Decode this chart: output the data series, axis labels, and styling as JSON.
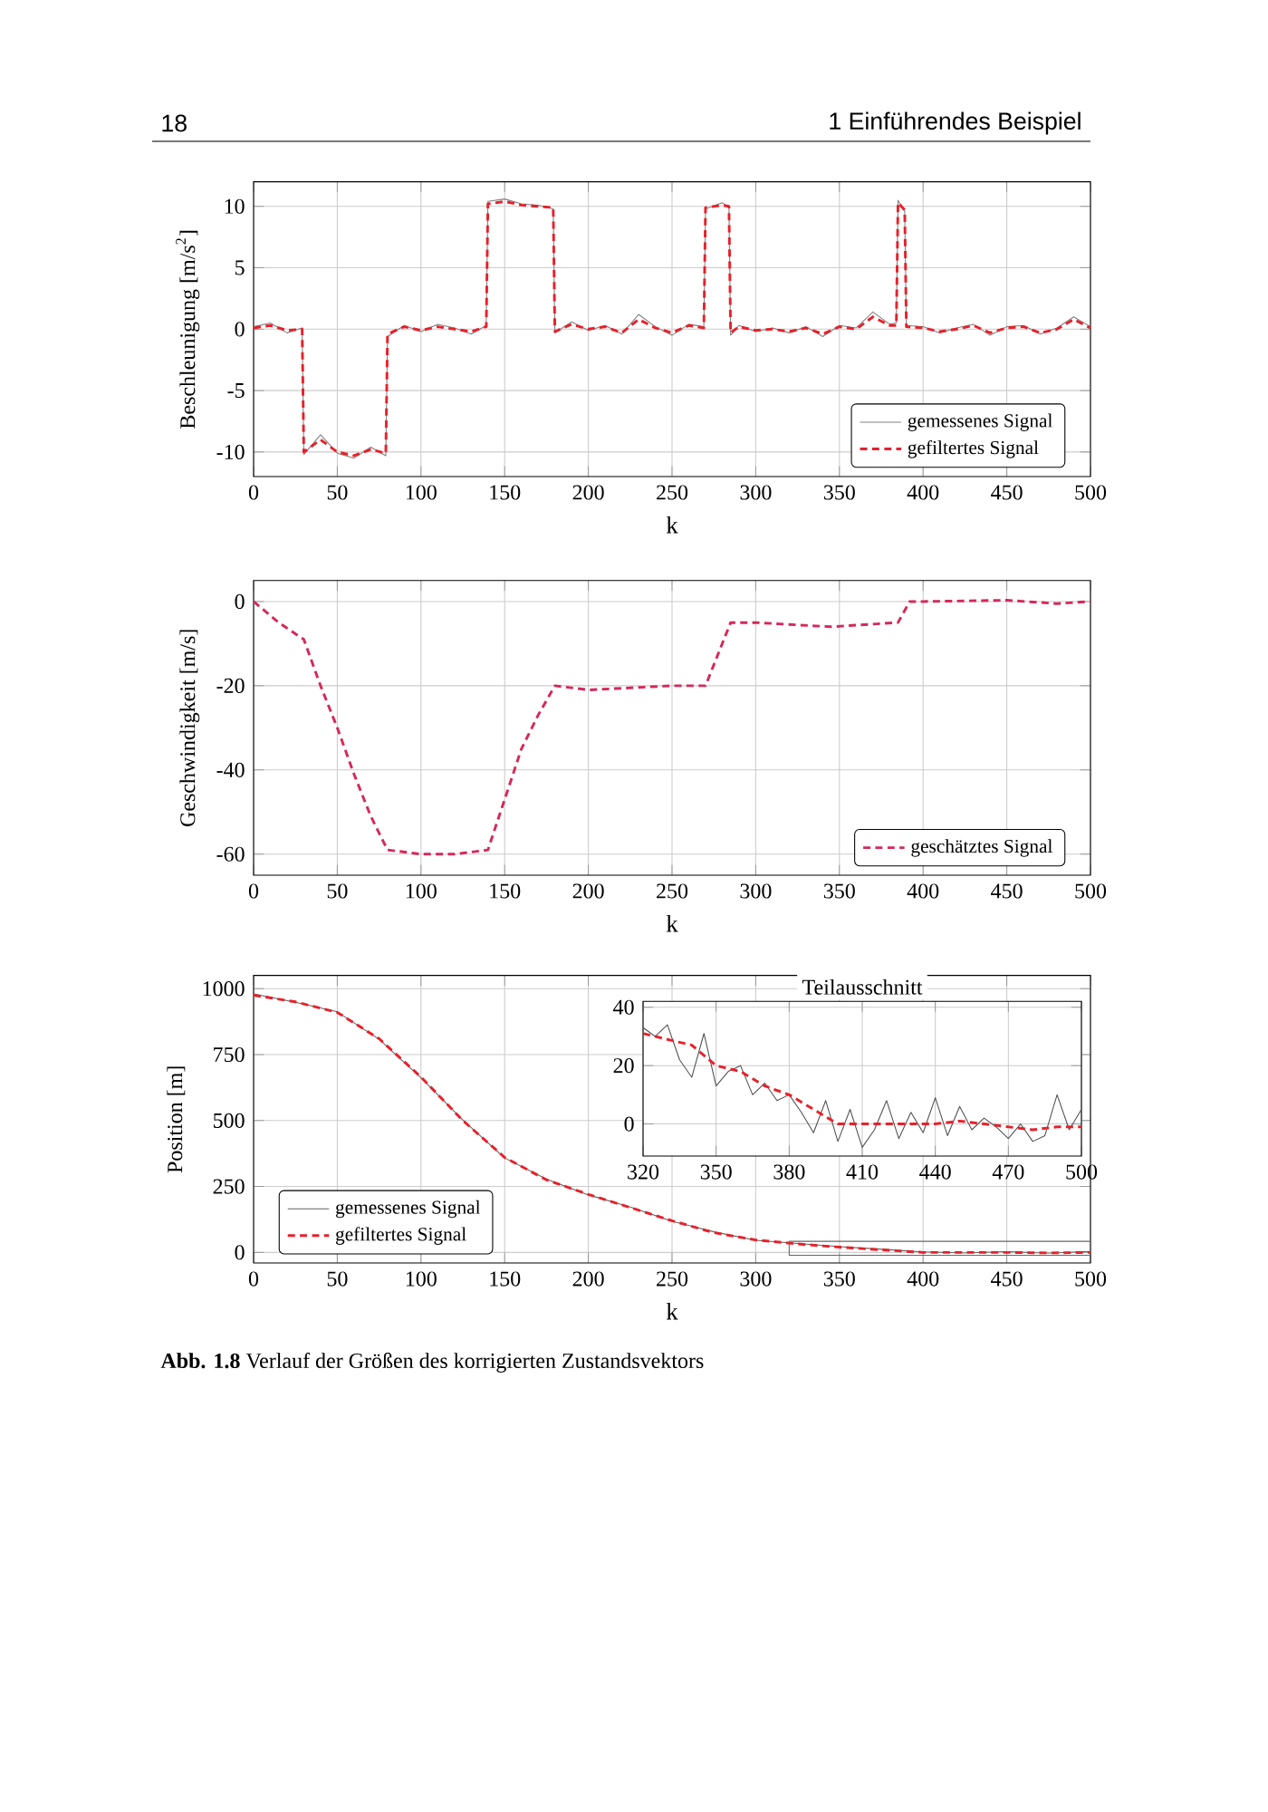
{
  "chart_data": [
    {
      "type": "line",
      "xlabel": "k",
      "ylabel": "Beschleunigung [m/s$^{2}$]",
      "annotations": [
        "18",
        "1 Einführendes Beispiel"
      ],
      "xlim": [
        0,
        500
      ],
      "ylim": [
        -12,
        12
      ],
      "xticks": [
        0,
        50,
        100,
        150,
        200,
        250,
        300,
        350,
        400,
        450,
        500
      ],
      "yticks": [
        -10,
        -5,
        0,
        5,
        10
      ],
      "grid": true,
      "legend": "bottom right",
      "marker": "none",
      "x": [
        0,
        10,
        20,
        29,
        30,
        40,
        50,
        60,
        70,
        79,
        80,
        90,
        100,
        110,
        120,
        130,
        139,
        140,
        150,
        160,
        170,
        179,
        180,
        190,
        200,
        210,
        220,
        230,
        240,
        250,
        260,
        269,
        270,
        280,
        284,
        285,
        290,
        300,
        310,
        320,
        330,
        340,
        350,
        360,
        370,
        380,
        384,
        385,
        389,
        390,
        400,
        410,
        420,
        430,
        440,
        450,
        460,
        470,
        480,
        490,
        500
      ],
      "series": [
        {
          "name": "gemessenes Signal",
          "color": "#808080",
          "line_style": "solid",
          "values": [
            0.2,
            0.5,
            -0.3,
            0.1,
            -10.2,
            -8.6,
            -10.1,
            -10.5,
            -9.6,
            -10.3,
            -0.6,
            0.3,
            -0.2,
            0.4,
            0.1,
            -0.4,
            0.3,
            10.4,
            10.6,
            10.2,
            10.1,
            9.8,
            -0.3,
            0.6,
            -0.1,
            0.3,
            -0.4,
            1.2,
            0.2,
            -0.5,
            0.4,
            0.2,
            9.8,
            10.3,
            9.9,
            -0.5,
            0.3,
            -0.2,
            0.1,
            -0.3,
            0.2,
            -0.6,
            0.3,
            0.1,
            1.4,
            0.4,
            0.5,
            10.5,
            9.6,
            0.3,
            0.2,
            -0.3,
            0.1,
            0.4,
            -0.5,
            0.2,
            0.3,
            -0.4,
            0.1,
            1.0,
            0.2
          ]
        },
        {
          "name": "gefiltertes Signal",
          "color": "#e8202a",
          "line_style": "dashed",
          "values": [
            0.1,
            0.3,
            -0.1,
            0.0,
            -10.0,
            -9.0,
            -10.0,
            -10.3,
            -9.8,
            -10.1,
            -0.4,
            0.2,
            -0.1,
            0.2,
            0.0,
            -0.2,
            0.2,
            10.2,
            10.4,
            10.1,
            10.0,
            9.9,
            -0.2,
            0.4,
            0.0,
            0.2,
            -0.3,
            0.8,
            0.1,
            -0.3,
            0.3,
            0.1,
            9.9,
            10.1,
            10.0,
            -0.3,
            0.2,
            -0.1,
            0.0,
            -0.2,
            0.1,
            -0.4,
            0.2,
            0.0,
            1.0,
            0.3,
            0.3,
            10.3,
            9.7,
            0.2,
            0.1,
            -0.2,
            0.0,
            0.3,
            -0.3,
            0.1,
            0.2,
            -0.3,
            0.0,
            0.8,
            0.1
          ]
        }
      ]
    },
    {
      "type": "line",
      "xlabel": "k",
      "ylabel": "Geschwindigkeit [m/s]",
      "xlim": [
        0,
        500
      ],
      "ylim": [
        -65,
        5
      ],
      "xticks": [
        0,
        50,
        100,
        150,
        200,
        250,
        300,
        350,
        400,
        450,
        500
      ],
      "yticks": [
        -60,
        -40,
        -20,
        0
      ],
      "grid": true,
      "legend": "bottom right",
      "marker": "none",
      "x": [
        0,
        15,
        30,
        40,
        50,
        60,
        70,
        80,
        100,
        120,
        140,
        150,
        160,
        170,
        180,
        200,
        250,
        270,
        285,
        300,
        345,
        385,
        392,
        400,
        450,
        480,
        500
      ],
      "series": [
        {
          "name": "geschätztes Signal",
          "color": "#d6285a",
          "line_style": "dashed",
          "values": [
            0,
            -5,
            -9,
            -20,
            -30,
            -41,
            -51,
            -59,
            -60,
            -60,
            -59,
            -47,
            -35,
            -27,
            -20,
            -21,
            -20,
            -20,
            -5,
            -5,
            -6,
            -5,
            0,
            0,
            0.3,
            -0.5,
            0
          ]
        }
      ]
    },
    {
      "type": "line",
      "xlabel": "k",
      "ylabel": "Position [m]",
      "annotations": [
        "**Abb. 1.8** Verlauf der Größen des korrigierten Zustandsvektors"
      ],
      "xlim": [
        0,
        500
      ],
      "ylim": [
        -40,
        1050
      ],
      "xticks": [
        0,
        50,
        100,
        150,
        200,
        250,
        300,
        350,
        400,
        450,
        500
      ],
      "yticks": [
        0,
        250,
        500,
        750,
        1000
      ],
      "grid": true,
      "legend": "bottom left",
      "marker": "none",
      "x": [
        0,
        25,
        50,
        75,
        100,
        125,
        150,
        175,
        200,
        225,
        250,
        275,
        300,
        325,
        350,
        375,
        400,
        425,
        450,
        475,
        500
      ],
      "series": [
        {
          "name": "gemessenes Signal",
          "color": "#606060",
          "line_style": "solid",
          "values": [
            980,
            948,
            912,
            808,
            662,
            502,
            358,
            278,
            218,
            172,
            118,
            78,
            46,
            34,
            22,
            12,
            2,
            -2,
            3,
            -3,
            4
          ]
        },
        {
          "name": "gefiltertes Signal",
          "color": "#e8202a",
          "line_style": "dashed",
          "values": [
            975,
            950,
            910,
            810,
            665,
            500,
            360,
            275,
            220,
            170,
            120,
            75,
            47,
            32,
            20,
            10,
            0,
            0,
            0,
            -2,
            0
          ]
        }
      ]
    },
    {
      "type": "line",
      "title": "Teilausschnitt",
      "xlim": [
        320,
        500
      ],
      "ylim": [
        -11,
        42
      ],
      "xticks": [
        320,
        350,
        380,
        410,
        440,
        470,
        500
      ],
      "yticks": [
        0,
        20,
        40
      ],
      "grid": true,
      "marker": "none",
      "series": [
        {
          "color": "#505050",
          "line_style": "solid",
          "x": [
            320,
            325,
            330,
            335,
            340,
            345,
            350,
            355,
            360,
            365,
            370,
            375,
            380,
            385,
            390,
            395,
            400,
            405,
            410,
            415,
            420,
            425,
            430,
            435,
            440,
            445,
            450,
            455,
            460,
            465,
            470,
            475,
            480,
            485,
            490,
            495,
            500
          ],
          "values": [
            33,
            30,
            34,
            22,
            16,
            31,
            13,
            18,
            20,
            10,
            14,
            8,
            10,
            4,
            -3,
            8,
            -6,
            5,
            -8,
            -2,
            8,
            -5,
            4,
            -3,
            9,
            -4,
            6,
            -2,
            2,
            -1,
            -5,
            0,
            -6,
            -4,
            10,
            -2,
            5
          ]
        },
        {
          "color": "#e8202a",
          "line_style": "dashed",
          "x": [
            320,
            330,
            340,
            350,
            360,
            370,
            380,
            390,
            400,
            410,
            420,
            430,
            440,
            450,
            460,
            470,
            480,
            490,
            500
          ],
          "values": [
            31,
            29,
            27,
            20,
            18,
            13,
            10,
            5,
            0,
            0,
            0,
            0,
            0,
            1,
            0,
            -1,
            -2,
            -1,
            -1
          ]
        }
      ]
    }
  ]
}
